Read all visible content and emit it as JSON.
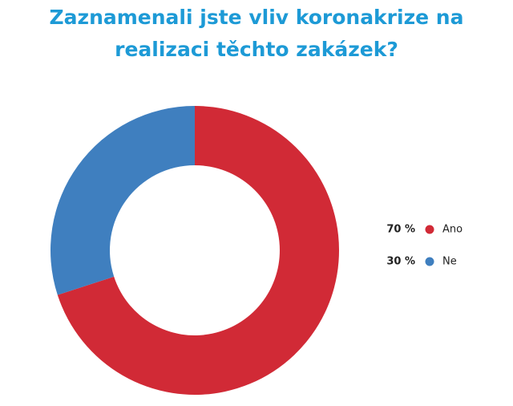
{
  "chart_data": {
    "type": "donut",
    "title": "Zaznamenali jste vliv koronakrize na realizaci těchto zakázek?",
    "categories": [
      "Ano",
      "Ne"
    ],
    "values": [
      70,
      30
    ],
    "value_labels": [
      "70 %",
      "30 %"
    ],
    "colors": [
      "#d12a36",
      "#3f7fbf"
    ]
  }
}
